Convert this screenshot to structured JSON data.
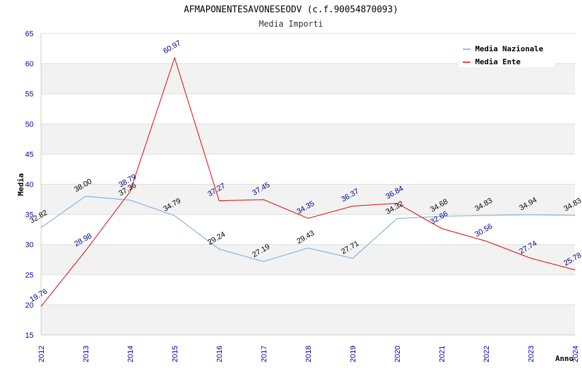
{
  "chart_data": {
    "type": "line",
    "title": "AFMAPONENTESAVONESEODV (c.f.90054870093)",
    "subtitle": "Media Importi",
    "xlabel": "Anno",
    "ylabel": "Media",
    "ylim": [
      15,
      65
    ],
    "yticks": [
      15,
      20,
      25,
      30,
      35,
      40,
      45,
      50,
      55,
      60,
      65
    ],
    "categories": [
      "2012",
      "2013",
      "2014",
      "2015",
      "2016",
      "2017",
      "2018",
      "2019",
      "2020",
      "2021",
      "2022",
      "2023",
      "2024"
    ],
    "series": [
      {
        "name": "Media Nazionale",
        "color": "#6fa8dc",
        "label_color": "#000000",
        "values": [
          32.82,
          38.0,
          37.36,
          34.79,
          29.24,
          27.19,
          29.43,
          27.71,
          34.32,
          34.68,
          34.83,
          34.94,
          34.83
        ],
        "labels": [
          "32.82",
          "38.00",
          "37.36",
          "34.79",
          "29.24",
          "27.19",
          "29.43",
          "27.71",
          "34.32",
          "34.68",
          "34.83",
          "34.94",
          "34.83"
        ]
      },
      {
        "name": "Media Ente",
        "color": "#e00000",
        "label_color": "#00008b",
        "values": [
          19.76,
          28.98,
          38.79,
          60.97,
          37.27,
          37.45,
          34.35,
          36.37,
          36.84,
          32.66,
          30.56,
          27.74,
          25.78
        ],
        "labels": [
          "19.76",
          "28.98",
          "38.79",
          "60.97",
          "37.27",
          "37.45",
          "34.35",
          "36.37",
          "36.84",
          "32.66",
          "30.56",
          "27.74",
          "25.78"
        ]
      }
    ],
    "legend_position": "top-right",
    "grid": true
  }
}
